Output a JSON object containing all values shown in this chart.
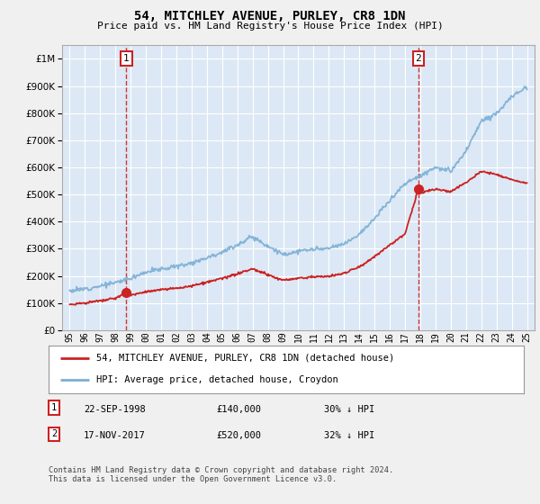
{
  "title": "54, MITCHLEY AVENUE, PURLEY, CR8 1DN",
  "subtitle": "Price paid vs. HM Land Registry's House Price Index (HPI)",
  "ylim": [
    0,
    1050000
  ],
  "yticks": [
    0,
    100000,
    200000,
    300000,
    400000,
    500000,
    600000,
    700000,
    800000,
    900000,
    1000000
  ],
  "ytick_labels": [
    "£0",
    "£100K",
    "£200K",
    "£300K",
    "£400K",
    "£500K",
    "£600K",
    "£700K",
    "£800K",
    "£900K",
    "£1M"
  ],
  "hpi_color": "#7bafd4",
  "price_color": "#cc2222",
  "annotation_box_color": "#cc2222",
  "background_color": "#f0f0f0",
  "plot_bg_color": "#dce8f5",
  "grid_color": "#ffffff",
  "legend_label_price": "54, MITCHLEY AVENUE, PURLEY, CR8 1DN (detached house)",
  "legend_label_hpi": "HPI: Average price, detached house, Croydon",
  "sale1_label": "1",
  "sale1_date": "22-SEP-1998",
  "sale1_price": "£140,000",
  "sale1_note": "30% ↓ HPI",
  "sale2_label": "2",
  "sale2_date": "17-NOV-2017",
  "sale2_price": "£520,000",
  "sale2_note": "32% ↓ HPI",
  "footer": "Contains HM Land Registry data © Crown copyright and database right 2024.\nThis data is licensed under the Open Government Licence v3.0.",
  "sale1_x": 1998.72,
  "sale1_y": 140000,
  "sale2_x": 2017.88,
  "sale2_y": 520000,
  "xlim": [
    1994.5,
    2025.5
  ],
  "xtick_years": [
    1995,
    1996,
    1997,
    1998,
    1999,
    2000,
    2001,
    2002,
    2003,
    2004,
    2005,
    2006,
    2007,
    2008,
    2009,
    2010,
    2011,
    2012,
    2013,
    2014,
    2015,
    2016,
    2017,
    2018,
    2019,
    2020,
    2021,
    2022,
    2023,
    2024,
    2025
  ]
}
